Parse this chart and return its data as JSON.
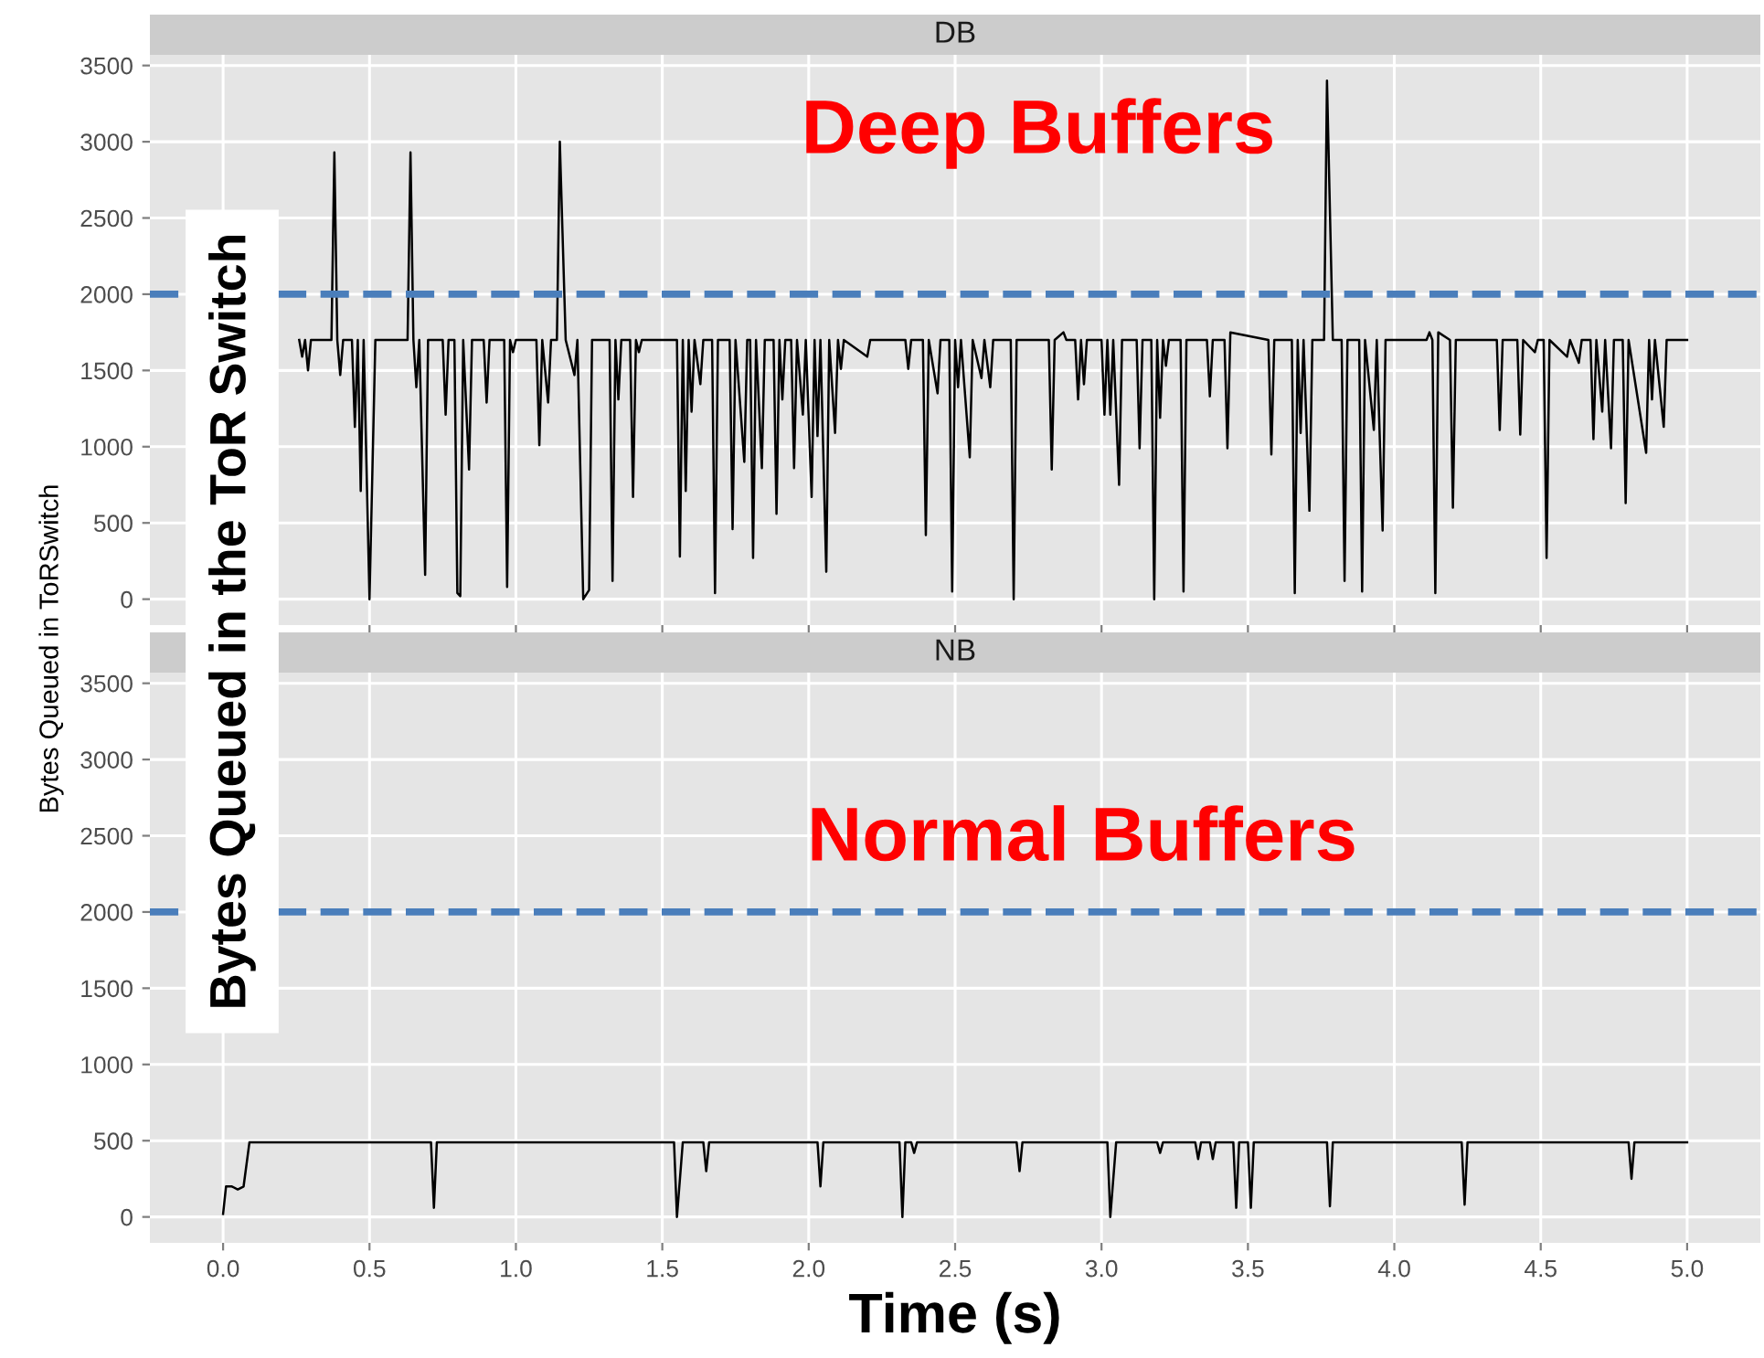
{
  "chart_data": [
    {
      "type": "line",
      "title": "DB",
      "ylabel": "Bytes Queued in ToRSwitch",
      "annotations": [
        "Deep Buffers",
        "Bytes Queued in the ToR Switch"
      ],
      "x": [
        0.26,
        0.27,
        0.28,
        0.29,
        0.3,
        0.37,
        0.38,
        0.39,
        0.4,
        0.41,
        0.44,
        0.45,
        0.46,
        0.47,
        0.48,
        0.5,
        0.52,
        0.63,
        0.64,
        0.65,
        0.66,
        0.67,
        0.69,
        0.7,
        0.75,
        0.76,
        0.77,
        0.79,
        0.8,
        0.81,
        0.82,
        0.84,
        0.85,
        0.89,
        0.9,
        0.91,
        0.96,
        0.97,
        0.98,
        0.99,
        1.0,
        1.07,
        1.08,
        1.09,
        1.11,
        1.12,
        1.14,
        1.15,
        1.17,
        1.2,
        1.21,
        1.23,
        1.25,
        1.26,
        1.32,
        1.33,
        1.34,
        1.35,
        1.36,
        1.39,
        1.4,
        1.41,
        1.42,
        1.43,
        1.55,
        1.56,
        1.57,
        1.58,
        1.59,
        1.6,
        1.61,
        1.63,
        1.64,
        1.67,
        1.68,
        1.69,
        1.73,
        1.74,
        1.75,
        1.78,
        1.79,
        1.8,
        1.81,
        1.82,
        1.84,
        1.85,
        1.88,
        1.89,
        1.9,
        1.91,
        1.92,
        1.94,
        1.95,
        1.96,
        1.98,
        1.99,
        2.01,
        2.02,
        2.03,
        2.04,
        2.06,
        2.07,
        2.09,
        2.1,
        2.11,
        2.12,
        2.2,
        2.21,
        2.33,
        2.34,
        2.35,
        2.39,
        2.4,
        2.41,
        2.44,
        2.45,
        2.48,
        2.49,
        2.5,
        2.51,
        2.52,
        2.55,
        2.56,
        2.59,
        2.6,
        2.62,
        2.63,
        2.69,
        2.7,
        2.71,
        2.82,
        2.83,
        2.84,
        2.87,
        2.88,
        2.91,
        2.92,
        2.93,
        2.94,
        2.95,
        3.0,
        3.01,
        3.02,
        3.03,
        3.04,
        3.06,
        3.07,
        3.12,
        3.13,
        3.14,
        3.17,
        3.18,
        3.19,
        3.2,
        3.21,
        3.22,
        3.23,
        3.27,
        3.28,
        3.29,
        3.36,
        3.37,
        3.38,
        3.42,
        3.43,
        3.44,
        3.57,
        3.58,
        3.59,
        3.65,
        3.66,
        3.67,
        3.68,
        3.69,
        3.71,
        3.72,
        3.76,
        3.77,
        3.79,
        3.82,
        3.83,
        3.84,
        3.88,
        3.89,
        3.9,
        3.93,
        3.94,
        3.96,
        3.97,
        4.11,
        4.12,
        4.13,
        4.14,
        4.15,
        4.19,
        4.2,
        4.21,
        4.35,
        4.36,
        4.37,
        4.42,
        4.43,
        4.44,
        4.48,
        4.49,
        4.51,
        4.52,
        4.53,
        4.59,
        4.6,
        4.63,
        4.64,
        4.67,
        4.68,
        4.69,
        4.71,
        4.72,
        4.74,
        4.75,
        4.78,
        4.79,
        4.8,
        4.86,
        4.87,
        4.88,
        4.89,
        4.92,
        4.93,
        5.0
      ],
      "series": [
        {
          "color": "#000000",
          "values": [
            1700,
            1590,
            1700,
            1500,
            1700,
            1700,
            2930,
            1700,
            1470,
            1700,
            1700,
            1130,
            1700,
            710,
            1700,
            0,
            1700,
            1700,
            2930,
            1700,
            1390,
            1700,
            160,
            1700,
            1700,
            1210,
            1700,
            1700,
            40,
            20,
            1700,
            850,
            1700,
            1700,
            1290,
            1700,
            1700,
            80,
            1700,
            1620,
            1700,
            1700,
            1010,
            1700,
            1290,
            1700,
            1700,
            3000,
            1700,
            1470,
            1700,
            0,
            60,
            1700,
            1700,
            120,
            1700,
            1310,
            1700,
            1700,
            670,
            1700,
            1620,
            1700,
            1700,
            280,
            1700,
            710,
            1700,
            1230,
            1700,
            1410,
            1700,
            1700,
            40,
            1700,
            1700,
            460,
            1700,
            900,
            1700,
            1700,
            270,
            1700,
            860,
            1700,
            1700,
            560,
            1700,
            1310,
            1700,
            1700,
            860,
            1700,
            1210,
            1700,
            670,
            1700,
            1070,
            1700,
            180,
            1700,
            1090,
            1700,
            1510,
            1700,
            1590,
            1700,
            1700,
            1510,
            1700,
            1700,
            420,
            1700,
            1350,
            1700,
            1700,
            50,
            1700,
            1390,
            1700,
            930,
            1700,
            1450,
            1700,
            1390,
            1700,
            1700,
            0,
            1700,
            1700,
            850,
            1700,
            1750,
            1700,
            1700,
            1310,
            1700,
            1410,
            1700,
            1700,
            1210,
            1700,
            1210,
            1700,
            750,
            1700,
            1700,
            990,
            1700,
            1700,
            0,
            1700,
            1190,
            1700,
            1530,
            1700,
            1700,
            50,
            1700,
            1700,
            1330,
            1700,
            1700,
            990,
            1750,
            1700,
            950,
            1700,
            1700,
            40,
            1700,
            1090,
            1700,
            580,
            1700,
            1700,
            3400,
            1700,
            1700,
            120,
            1700,
            1700,
            50,
            1700,
            1110,
            1700,
            450,
            1700,
            1700,
            1750,
            1700,
            40,
            1750,
            1700,
            600,
            1700,
            1700,
            1110,
            1700,
            1700,
            1080,
            1700,
            1620,
            1700,
            1700,
            270,
            1700,
            1590,
            1700,
            1550,
            1700,
            1700,
            1050,
            1700,
            1230,
            1700,
            990,
            1700,
            1700,
            630,
            1700,
            960,
            1700,
            1310,
            1700,
            1130,
            1700,
            1700
          ]
        }
      ],
      "ref_lines": [
        {
          "axis": "y",
          "value": 2000,
          "color": "#4a7ebb",
          "line_style": "dashed"
        }
      ],
      "xlim": [
        -0.25,
        5.25
      ],
      "ylim": [
        -170,
        3570
      ],
      "xticks": [
        {
          "value": 0,
          "label": null
        },
        {
          "value": 0.5,
          "label": null
        },
        {
          "value": 1,
          "label": null
        },
        {
          "value": 1.5,
          "label": null
        },
        {
          "value": 2,
          "label": null
        },
        {
          "value": 2.5,
          "label": null
        },
        {
          "value": 3,
          "label": null
        },
        {
          "value": 3.5,
          "label": null
        },
        {
          "value": 4,
          "label": null
        },
        {
          "value": 4.5,
          "label": null
        },
        {
          "value": 5,
          "label": null
        }
      ],
      "yticks": [
        0,
        500,
        1000,
        1500,
        2000,
        2500,
        3000,
        3500
      ],
      "grid": true,
      "tick_labels": "y"
    },
    {
      "type": "line",
      "title": "NB",
      "xlabel": "Time (s)",
      "annotations": [
        "Normal Buffers"
      ],
      "x": [
        0.0,
        0.01,
        0.03,
        0.05,
        0.07,
        0.09,
        0.71,
        0.72,
        0.73,
        1.54,
        1.55,
        1.57,
        1.64,
        1.65,
        1.66,
        2.03,
        2.04,
        2.05,
        2.31,
        2.32,
        2.33,
        2.35,
        2.36,
        2.37,
        2.71,
        2.72,
        2.73,
        3.02,
        3.03,
        3.05,
        3.19,
        3.2,
        3.21,
        3.32,
        3.33,
        3.34,
        3.37,
        3.38,
        3.39,
        3.45,
        3.46,
        3.47,
        3.5,
        3.51,
        3.52,
        3.77,
        3.78,
        3.79,
        4.23,
        4.24,
        4.25,
        4.8,
        4.81,
        4.82,
        5.0
      ],
      "series": [
        {
          "color": "#000000",
          "values": [
            20,
            200,
            200,
            180,
            200,
            490,
            490,
            60,
            490,
            490,
            0,
            490,
            490,
            300,
            490,
            490,
            200,
            490,
            490,
            0,
            490,
            490,
            420,
            490,
            490,
            300,
            490,
            490,
            0,
            490,
            490,
            420,
            490,
            490,
            380,
            490,
            490,
            380,
            490,
            490,
            60,
            490,
            490,
            60,
            490,
            490,
            70,
            490,
            490,
            80,
            490,
            490,
            250,
            490,
            490
          ]
        }
      ],
      "ref_lines": [
        {
          "axis": "y",
          "value": 2000,
          "color": "#4a7ebb",
          "line_style": "dashed"
        }
      ],
      "xlim": [
        -0.25,
        5.25
      ],
      "ylim": [
        -170,
        3570
      ],
      "xticks": [
        {
          "value": 0,
          "label": "0.0"
        },
        {
          "value": 0.5,
          "label": "0.5"
        },
        {
          "value": 1,
          "label": "1.0"
        },
        {
          "value": 1.5,
          "label": "1.5"
        },
        {
          "value": 2,
          "label": "2.0"
        },
        {
          "value": 2.5,
          "label": "2.5"
        },
        {
          "value": 3,
          "label": "3.0"
        },
        {
          "value": 3.5,
          "label": "3.5"
        },
        {
          "value": 4,
          "label": "4.0"
        },
        {
          "value": 4.5,
          "label": "4.5"
        },
        {
          "value": 5,
          "label": "5.0"
        }
      ],
      "yticks": [
        0,
        500,
        1000,
        1500,
        2000,
        2500,
        3000,
        3500
      ],
      "grid": true
    }
  ]
}
